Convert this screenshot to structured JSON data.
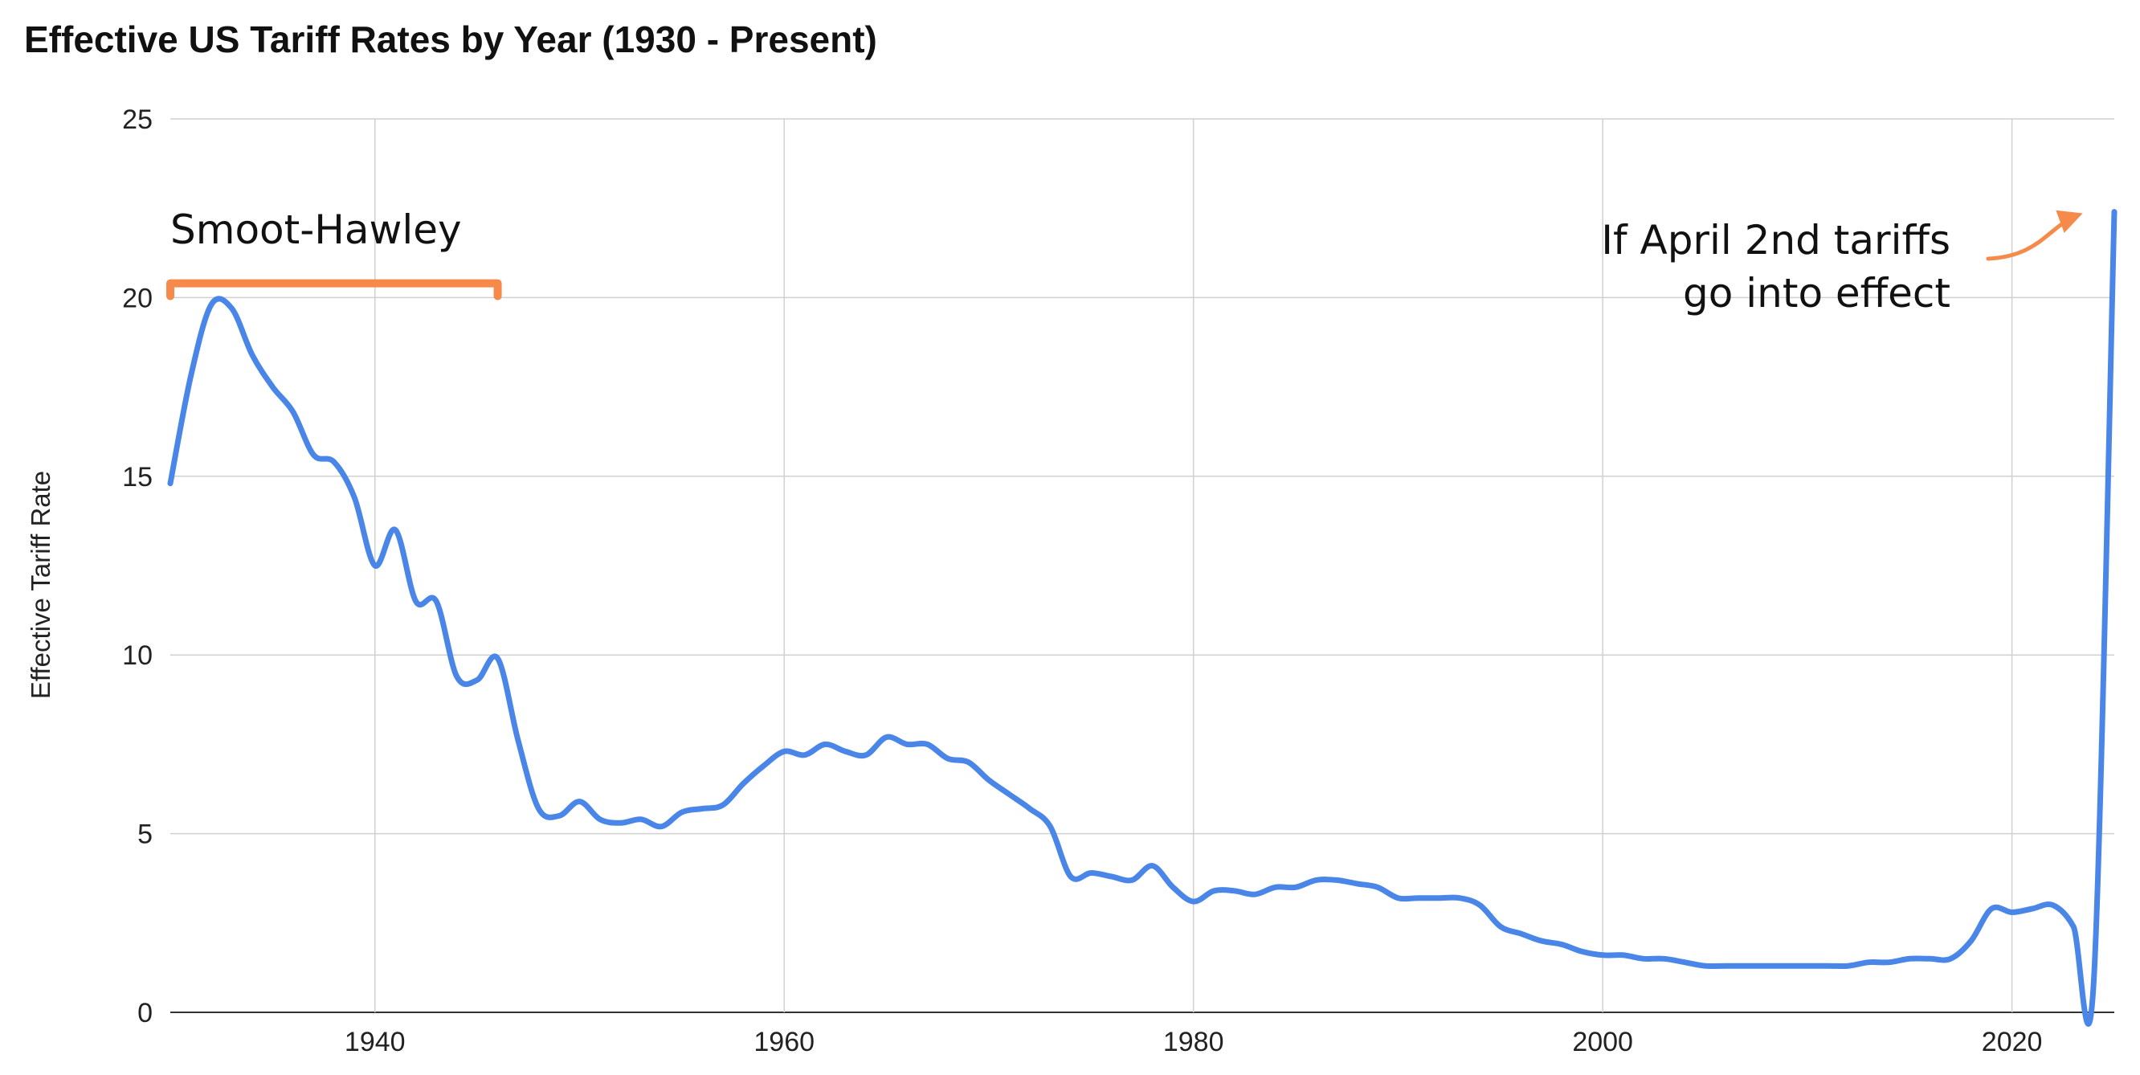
{
  "chart_data": {
    "type": "line",
    "title": "Effective US Tariff Rates by Year (1930 - Present)",
    "xlabel": "",
    "ylabel": "Effective Tariff Rate",
    "xlim": [
      1930,
      2025
    ],
    "ylim": [
      0,
      25
    ],
    "x_ticks": [
      1940,
      1960,
      1980,
      2000,
      2020
    ],
    "y_ticks": [
      0,
      5,
      10,
      15,
      20,
      25
    ],
    "grid": true,
    "legend": "none",
    "line_color": "#4A86E8",
    "annotation_color": "#F58A4B",
    "series": [
      {
        "x": [
          1930,
          1931,
          1932,
          1933,
          1934,
          1935,
          1936,
          1937,
          1938,
          1939,
          1940,
          1941,
          1942,
          1943,
          1944,
          1945,
          1946,
          1947,
          1948,
          1949,
          1950,
          1951,
          1952,
          1953,
          1954,
          1955,
          1956,
          1957,
          1958,
          1959,
          1960,
          1961,
          1962,
          1963,
          1964,
          1965,
          1966,
          1967,
          1968,
          1969,
          1970,
          1971,
          1972,
          1973,
          1974,
          1975,
          1976,
          1977,
          1978,
          1979,
          1980,
          1981,
          1982,
          1983,
          1984,
          1985,
          1986,
          1987,
          1988,
          1989,
          1990,
          1991,
          1992,
          1993,
          1994,
          1995,
          1996,
          1997,
          1998,
          1999,
          2000,
          2001,
          2002,
          2003,
          2004,
          2005,
          2006,
          2007,
          2008,
          2009,
          2010,
          2011,
          2012,
          2013,
          2014,
          2015,
          2016,
          2017,
          2018,
          2019,
          2020,
          2021,
          2022,
          2023,
          2024,
          2025
        ],
        "values": [
          14.8,
          17.8,
          19.8,
          19.7,
          18.4,
          17.5,
          16.8,
          15.6,
          15.4,
          14.4,
          12.5,
          13.5,
          11.5,
          11.5,
          9.4,
          9.3,
          9.9,
          7.6,
          5.7,
          5.5,
          5.9,
          5.4,
          5.3,
          5.4,
          5.2,
          5.6,
          5.7,
          5.8,
          6.4,
          6.9,
          7.3,
          7.2,
          7.5,
          7.3,
          7.2,
          7.7,
          7.5,
          7.5,
          7.1,
          7.0,
          6.5,
          6.1,
          5.7,
          5.2,
          3.8,
          3.9,
          3.8,
          3.7,
          4.1,
          3.5,
          3.1,
          3.4,
          3.4,
          3.3,
          3.5,
          3.5,
          3.7,
          3.7,
          3.6,
          3.5,
          3.2,
          3.2,
          3.2,
          3.2,
          3.0,
          2.4,
          2.2,
          2.0,
          1.9,
          1.7,
          1.6,
          1.6,
          1.5,
          1.5,
          1.4,
          1.3,
          1.3,
          1.3,
          1.3,
          1.3,
          1.3,
          1.3,
          1.3,
          1.4,
          1.4,
          1.5,
          1.5,
          1.5,
          2.0,
          2.9,
          2.8,
          2.9,
          3.0,
          2.4,
          0.9,
          22.4
        ]
      }
    ],
    "annotations": [
      {
        "text": "Smoot-Hawley",
        "x_start": 1930,
        "x_end": 1946,
        "y": 20.4
      },
      {
        "lines": [
          "If April 2nd tariffs",
          "go into effect"
        ],
        "arrow_to_x": 2025,
        "arrow_to_y": 22.4
      }
    ]
  }
}
